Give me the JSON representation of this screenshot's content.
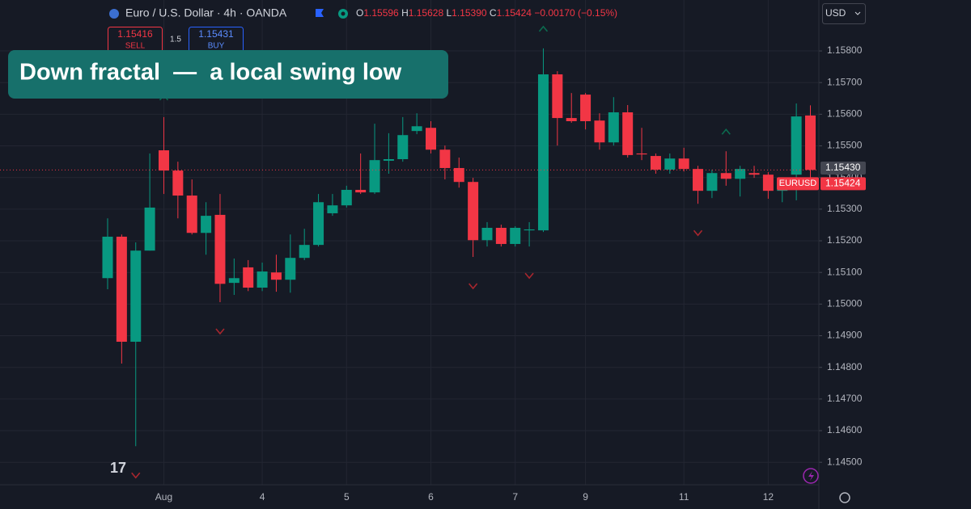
{
  "chart_data": {
    "type": "candlestick",
    "title": "Euro / U.S. Dollar · 4h · OANDA",
    "header": {
      "o_key": "O",
      "o": "1.15596",
      "h_key": "H",
      "h": "1.15628",
      "l_key": "L",
      "l": "1.15390",
      "c_key": "C",
      "c": "1.15424",
      "change": "−0.00170 (−0.15%)"
    },
    "sell_price": "1.15416",
    "sell_label": "SELL",
    "spread": "1.5",
    "buy_price": "1.15431",
    "buy_label": "BUY",
    "currency": "USD",
    "annotation": "Down fractal  —  a local swing low",
    "symbol": "EURUSD",
    "ref_price": {
      "value": 1.1543,
      "label": "1.15430"
    },
    "last_price": {
      "value": 1.15424,
      "label": "1.15424"
    },
    "up_color": "#089981",
    "down_color": "#f23645",
    "categories": [
      null,
      null,
      null,
      null,
      "Aug",
      null,
      null,
      null,
      null,
      null,
      null,
      "4",
      null,
      null,
      null,
      null,
      null,
      "5",
      null,
      null,
      null,
      null,
      null,
      "6",
      null,
      null,
      null,
      null,
      null,
      "7",
      null,
      null,
      null,
      null,
      "9",
      null,
      null,
      null,
      null,
      null,
      null,
      "11",
      null,
      null,
      null,
      null,
      null,
      "12",
      null,
      null,
      null
    ],
    "open": [
      1.15082,
      1.15213,
      1.14881,
      1.15169,
      1.15486,
      1.15422,
      1.15343,
      1.15225,
      1.15282,
      1.15067,
      1.15116,
      1.15052,
      1.151,
      1.15077,
      1.15146,
      1.15187,
      1.15287,
      1.15312,
      1.15361,
      1.15353,
      1.15453,
      1.15458,
      1.15547,
      1.15557,
      1.15488,
      1.1543,
      1.15386,
      1.15202,
      1.15241,
      1.1519,
      1.15233,
      1.15233,
      1.15726,
      1.15588,
      1.15662,
      1.1558,
      1.15511,
      1.15606,
      1.15476,
      1.15468,
      1.15425,
      1.1546,
      1.15427,
      1.15358,
      1.15414,
      1.15396,
      1.15414,
      1.15409,
      1.15358,
      1.15409,
      1.15596
    ],
    "high": [
      1.15271,
      1.1522,
      1.15195,
      1.15476,
      1.15591,
      1.1545,
      1.15394,
      1.15322,
      1.15348,
      1.15144,
      1.15139,
      1.15131,
      1.15156,
      1.1522,
      1.15238,
      1.15348,
      1.15348,
      1.15374,
      1.15476,
      1.1557,
      1.1554,
      1.15591,
      1.15603,
      1.15578,
      1.15501,
      1.15463,
      1.15399,
      1.15259,
      1.15251,
      1.15246,
      1.15259,
      1.15808,
      1.15736,
      1.15667,
      1.15667,
      1.15603,
      1.15654,
      1.15629,
      1.15557,
      1.15476,
      1.15476,
      1.15494,
      1.15437,
      1.15425,
      1.15483,
      1.15437,
      1.15437,
      1.15417,
      1.15399,
      1.15634,
      1.15628
    ],
    "low": [
      1.15047,
      1.14812,
      1.14551,
      1.15169,
      1.15348,
      1.15271,
      1.1522,
      1.15156,
      1.15006,
      1.15029,
      1.15041,
      1.15041,
      1.15039,
      1.15036,
      1.15139,
      1.15182,
      1.15279,
      1.15305,
      1.15348,
      1.15348,
      1.15412,
      1.1545,
      1.15537,
      1.15476,
      1.15394,
      1.15368,
      1.15149,
      1.15182,
      1.15182,
      1.15182,
      1.15182,
      1.15228,
      1.15501,
      1.15573,
      1.15552,
      1.15488,
      1.15501,
      1.15463,
      1.15455,
      1.15412,
      1.15412,
      1.15419,
      1.15317,
      1.15335,
      1.15374,
      1.1534,
      1.15399,
      1.15333,
      1.15322,
      1.15328,
      1.1539
    ],
    "close": [
      1.15213,
      1.14881,
      1.15169,
      1.15305,
      1.15422,
      1.15343,
      1.15225,
      1.15279,
      1.15064,
      1.15082,
      1.15052,
      1.15103,
      1.15077,
      1.15146,
      1.15187,
      1.15322,
      1.15312,
      1.15361,
      1.15353,
      1.15455,
      1.15458,
      1.15534,
      1.15562,
      1.15488,
      1.1543,
      1.15386,
      1.15202,
      1.15241,
      1.1519,
      1.15241,
      1.15236,
      1.15726,
      1.15588,
      1.15578,
      1.15578,
      1.15511,
      1.15606,
      1.15471,
      1.15473,
      1.15425,
      1.1546,
      1.15427,
      1.15358,
      1.15414,
      1.15396,
      1.15427,
      1.15409,
      1.15358,
      1.15361,
      1.15593,
      1.15424
    ],
    "down_fractals": [
      2,
      8,
      26,
      30,
      42
    ],
    "up_fractals": [
      4,
      31,
      44
    ],
    "ylim": [
      1.14429,
      1.15961
    ],
    "yticks": [
      {
        "value": 1.145,
        "label": "1.14500"
      },
      {
        "value": 1.146,
        "label": "1.14600"
      },
      {
        "value": 1.147,
        "label": "1.14700"
      },
      {
        "value": 1.148,
        "label": "1.14800"
      },
      {
        "value": 1.149,
        "label": "1.14900"
      },
      {
        "value": 1.15,
        "label": "1.15000"
      },
      {
        "value": 1.151,
        "label": "1.15100"
      },
      {
        "value": 1.152,
        "label": "1.15200"
      },
      {
        "value": 1.153,
        "label": "1.15300"
      },
      {
        "value": 1.154,
        "label": "1.15400"
      },
      {
        "value": 1.155,
        "label": "1.15500"
      },
      {
        "value": 1.156,
        "label": "1.15600"
      },
      {
        "value": 1.157,
        "label": "1.15700"
      },
      {
        "value": 1.158,
        "label": "1.15800"
      }
    ],
    "grid": true
  }
}
